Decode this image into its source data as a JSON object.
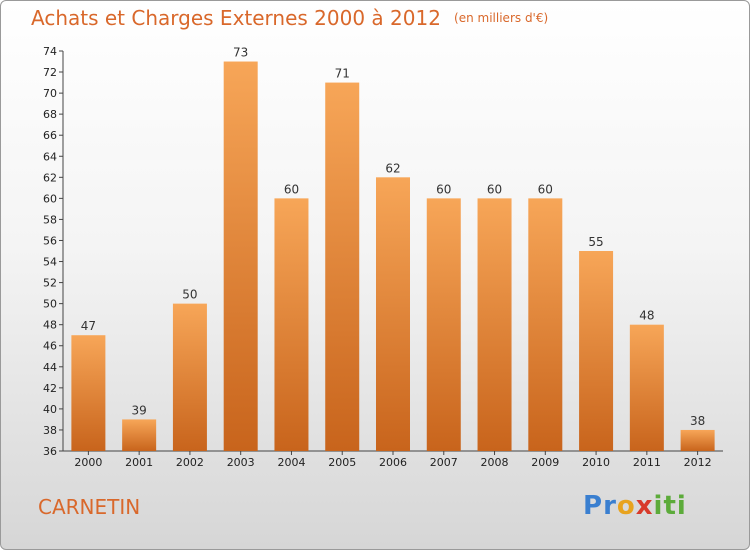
{
  "chart_data": {
    "type": "bar",
    "title": "Achats et Charges Externes 2000 à 2012",
    "subtitle": "(en milliers d'€)",
    "categories": [
      "2000",
      "2001",
      "2002",
      "2003",
      "2004",
      "2005",
      "2006",
      "2007",
      "2008",
      "2009",
      "2010",
      "2011",
      "2012"
    ],
    "values": [
      47,
      39,
      50,
      73,
      60,
      71,
      62,
      60,
      60,
      60,
      55,
      48,
      38
    ],
    "ylim": [
      36,
      74
    ],
    "yticks": [
      36,
      38,
      40,
      42,
      44,
      46,
      48,
      50,
      52,
      54,
      56,
      58,
      60,
      62,
      64,
      66,
      68,
      70,
      72,
      74
    ],
    "xlabel": "",
    "ylabel": "",
    "grid": false,
    "colors": {
      "bar_light": "#f7a658",
      "bar_dark": "#c8641c",
      "title": "#d9682b"
    }
  },
  "footer": {
    "commune": "CARNETIN"
  },
  "logo": {
    "letters": [
      "P",
      "r",
      "o",
      "x",
      "i",
      "t",
      "i"
    ],
    "colors": [
      "#3a7fd0",
      "#3a7fd0",
      "#e8a31e",
      "#d83a2a",
      "#5cab3a",
      "#5cab3a",
      "#5cab3a"
    ]
  }
}
